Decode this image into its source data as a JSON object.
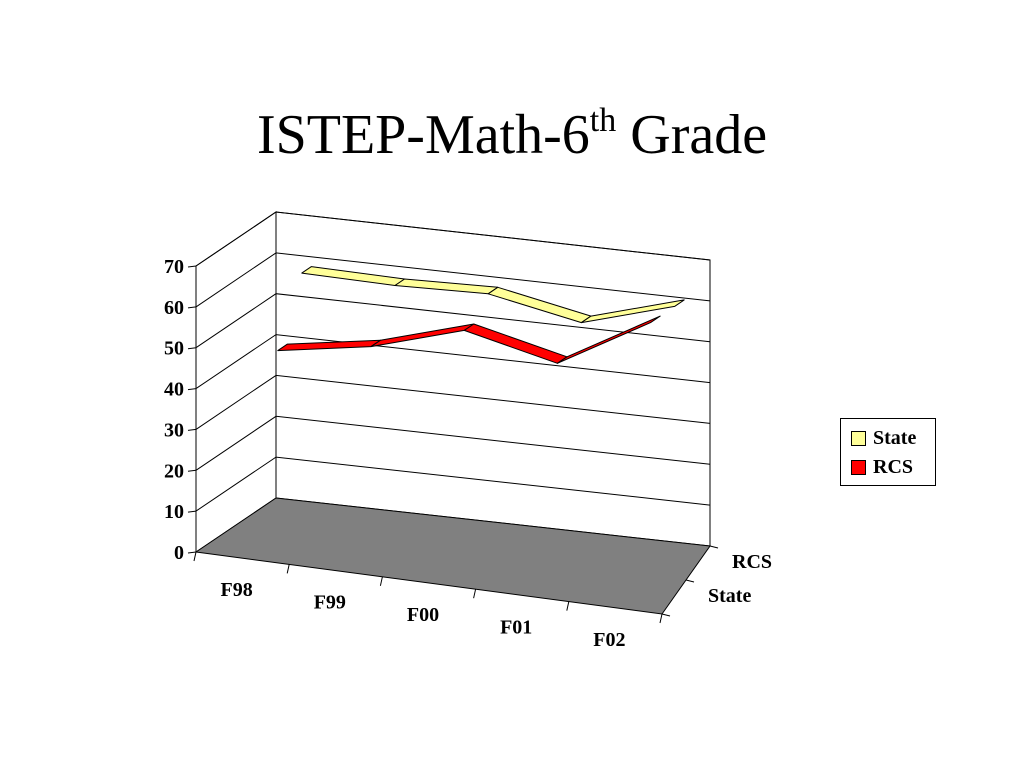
{
  "slide": {
    "title_main": "ISTEP-Math-6",
    "title_sup": "th",
    "title_end": " Grade"
  },
  "colors": {
    "state": "#FFFF99",
    "rcs": "#FF0000",
    "floor": "#808080",
    "outline": "#000000"
  },
  "chart_data": {
    "type": "line",
    "style": "3d-ribbon",
    "title": "ISTEP-Math-6th Grade",
    "categories": [
      "F98",
      "F99",
      "F00",
      "F01",
      "F02"
    ],
    "series": [
      {
        "name": "State",
        "values": [
          60,
          60,
          61,
          57,
          64
        ],
        "color": "#FFFF99"
      },
      {
        "name": "RCS",
        "values": [
          45,
          49,
          56,
          51,
          64
        ],
        "color": "#FF0000"
      }
    ],
    "depth_labels": [
      "RCS",
      "State"
    ],
    "ylim": [
      0,
      70
    ],
    "yticks": [
      0,
      10,
      20,
      30,
      40,
      50,
      60,
      70
    ],
    "grid": true,
    "legend_position": "right"
  },
  "legend": {
    "items": [
      {
        "label": "State"
      },
      {
        "label": "RCS"
      }
    ]
  }
}
